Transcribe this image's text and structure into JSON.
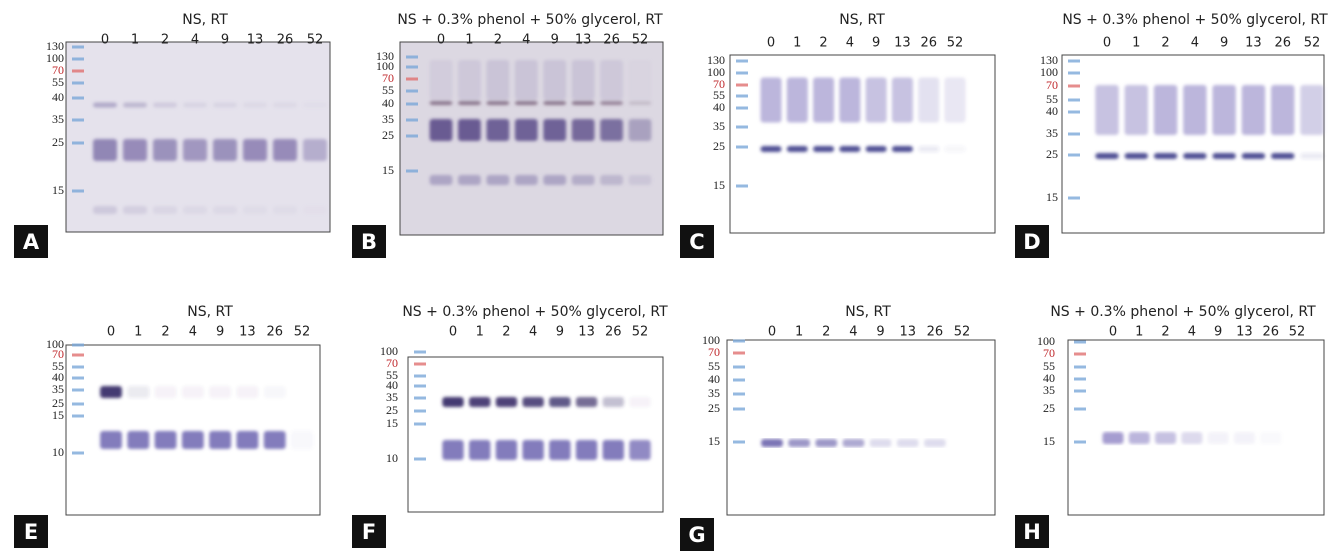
{
  "panels": [
    {
      "letter": "A",
      "title": "NS, RT",
      "lanes": [
        "0",
        "1",
        "2",
        "4",
        "9",
        "13",
        "26",
        "52"
      ],
      "markers": [
        "130",
        "100",
        "70",
        "55",
        "40",
        "35",
        "25",
        "15"
      ]
    },
    {
      "letter": "B",
      "title": "NS + 0.3% phenol + 50% glycerol, RT",
      "lanes": [
        "0",
        "1",
        "2",
        "4",
        "9",
        "13",
        "26",
        "52"
      ],
      "markers": [
        "130",
        "100",
        "70",
        "55",
        "40",
        "35",
        "25",
        "15"
      ]
    },
    {
      "letter": "C",
      "title": "NS, RT",
      "lanes": [
        "0",
        "1",
        "2",
        "4",
        "9",
        "13",
        "26",
        "52"
      ],
      "markers": [
        "130",
        "100",
        "70",
        "55",
        "40",
        "35",
        "25",
        "15"
      ]
    },
    {
      "letter": "D",
      "title": "NS + 0.3% phenol + 50% glycerol, RT",
      "lanes": [
        "0",
        "1",
        "2",
        "4",
        "9",
        "13",
        "26",
        "52"
      ],
      "markers": [
        "130",
        "100",
        "70",
        "55",
        "40",
        "35",
        "25",
        "15"
      ]
    },
    {
      "letter": "E",
      "title": "NS, RT",
      "lanes": [
        "0",
        "1",
        "2",
        "4",
        "9",
        "13",
        "26",
        "52"
      ],
      "markers": [
        "100",
        "70",
        "55",
        "40",
        "35",
        "25",
        "15",
        "10"
      ]
    },
    {
      "letter": "F",
      "title": "NS + 0.3% phenol + 50% glycerol, RT",
      "lanes": [
        "0",
        "1",
        "2",
        "4",
        "9",
        "13",
        "26",
        "52"
      ],
      "markers": [
        "100",
        "70",
        "55",
        "40",
        "35",
        "25",
        "15",
        "10"
      ]
    },
    {
      "letter": "G",
      "title": "NS, RT",
      "lanes": [
        "0",
        "1",
        "2",
        "4",
        "9",
        "13",
        "26",
        "52"
      ],
      "markers": [
        "100",
        "70",
        "55",
        "40",
        "35",
        "25",
        "15"
      ]
    },
    {
      "letter": "H",
      "title": "NS + 0.3% phenol + 50% glycerol, RT",
      "lanes": [
        "0",
        "1",
        "2",
        "4",
        "9",
        "13",
        "26",
        "52"
      ],
      "markers": [
        "100",
        "70",
        "55",
        "40",
        "35",
        "25",
        "15"
      ]
    }
  ]
}
